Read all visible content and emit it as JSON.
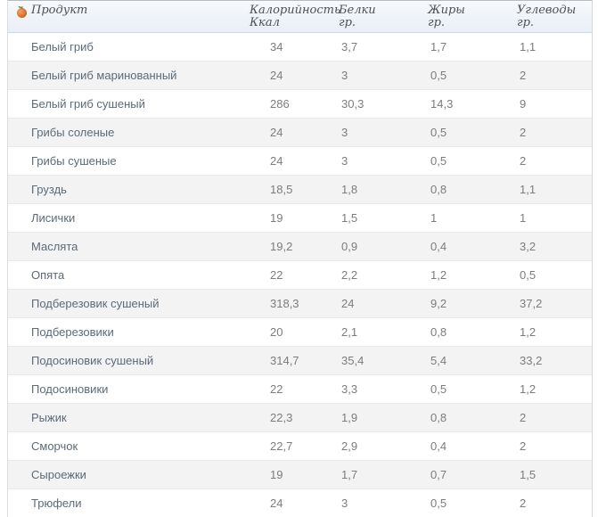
{
  "colors": {
    "header_gradient_top": "#f8fafc",
    "header_gradient_bottom": "#e9eff6",
    "header_border_bottom": "#cfd9e3",
    "row_stripe": "#f3f3f3",
    "header_text": "#4c5157",
    "product_text": "#5c6a79",
    "value_text": "#7c7c7c",
    "fruit_orange": "#dd7a3a",
    "leaf_green": "#5f9440"
  },
  "table": {
    "icon": "fruit-icon",
    "columns": [
      {
        "label": "Продукт",
        "sub": ""
      },
      {
        "label": "Калорийность",
        "sub": "Ккал"
      },
      {
        "label": "Белки",
        "sub": "гр."
      },
      {
        "label": "Жиры",
        "sub": "гр."
      },
      {
        "label": "Углеводы",
        "sub": "гр."
      }
    ],
    "rows": [
      {
        "product": "Белый гриб",
        "kcal": "34",
        "protein": "3,7",
        "fat": "1,7",
        "carbs": "1,1"
      },
      {
        "product": "Белый гриб маринованный",
        "kcal": "24",
        "protein": "3",
        "fat": "0,5",
        "carbs": "2"
      },
      {
        "product": "Белый гриб сушеный",
        "kcal": "286",
        "protein": "30,3",
        "fat": "14,3",
        "carbs": "9"
      },
      {
        "product": "Грибы соленые",
        "kcal": "24",
        "protein": "3",
        "fat": "0,5",
        "carbs": "2"
      },
      {
        "product": "Грибы сушеные",
        "kcal": "24",
        "protein": "3",
        "fat": "0,5",
        "carbs": "2"
      },
      {
        "product": "Груздь",
        "kcal": "18,5",
        "protein": "1,8",
        "fat": "0,8",
        "carbs": "1,1"
      },
      {
        "product": "Лисички",
        "kcal": "19",
        "protein": "1,5",
        "fat": "1",
        "carbs": "1"
      },
      {
        "product": "Маслята",
        "kcal": "19,2",
        "protein": "0,9",
        "fat": "0,4",
        "carbs": "3,2"
      },
      {
        "product": "Опята",
        "kcal": "22",
        "protein": "2,2",
        "fat": "1,2",
        "carbs": "0,5"
      },
      {
        "product": "Подберезовик сушеный",
        "kcal": "318,3",
        "protein": "24",
        "fat": "9,2",
        "carbs": "37,2"
      },
      {
        "product": "Подберезовики",
        "kcal": "20",
        "protein": "2,1",
        "fat": "0,8",
        "carbs": "1,2"
      },
      {
        "product": "Подосиновик сушеный",
        "kcal": "314,7",
        "protein": "35,4",
        "fat": "5,4",
        "carbs": "33,2"
      },
      {
        "product": "Подосиновики",
        "kcal": "22",
        "protein": "3,3",
        "fat": "0,5",
        "carbs": "1,2"
      },
      {
        "product": "Рыжик",
        "kcal": "22,3",
        "protein": "1,9",
        "fat": "0,8",
        "carbs": "2"
      },
      {
        "product": "Сморчок",
        "kcal": "22,7",
        "protein": "2,9",
        "fat": "0,4",
        "carbs": "2"
      },
      {
        "product": "Сыроежки",
        "kcal": "19",
        "protein": "1,7",
        "fat": "0,7",
        "carbs": "1,5"
      },
      {
        "product": "Трюфели",
        "kcal": "24",
        "protein": "3",
        "fat": "0,5",
        "carbs": "2"
      }
    ]
  }
}
